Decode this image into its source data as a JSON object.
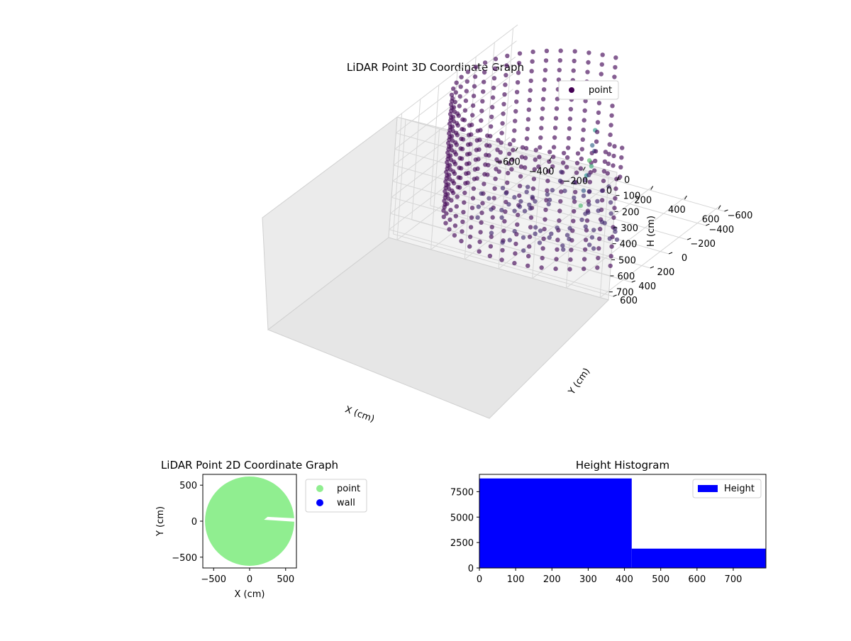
{
  "chart_data": [
    {
      "type": "scatter",
      "projection": "3d",
      "title": "LiDAR Point 3D Coordinate Graph",
      "xlabel": "X (cm)",
      "ylabel": "Y (cm)",
      "zlabel": "H (cm)",
      "xticks": [
        "−600",
        "−400",
        "−200",
        "0",
        "200",
        "400",
        "600"
      ],
      "yticks": [
        "−600",
        "−400",
        "−200",
        "0",
        "200",
        "400",
        "600"
      ],
      "zticks": [
        "0",
        "100",
        "200",
        "300",
        "400",
        "500",
        "600",
        "700"
      ],
      "xlim": [
        -650,
        650
      ],
      "ylim": [
        -650,
        650
      ],
      "zlim": [
        0,
        750
      ],
      "z_inverted": true,
      "grid": true,
      "legend": {
        "position": "top-right",
        "entries": [
          {
            "label": "point",
            "color": "#440154"
          }
        ]
      },
      "colormap": "viridis",
      "shape": "ring wall of points (radius ≈ 600 cm) sampled at heights 0–750 cm with scattered outliers toward +X/−Y"
    },
    {
      "type": "scatter",
      "title": "LiDAR Point 2D Coordinate Graph",
      "xlabel": "X (cm)",
      "ylabel": "Y (cm)",
      "xticks": [
        "−500",
        "0",
        "500"
      ],
      "yticks": [
        "−500",
        "0",
        "500"
      ],
      "xlim": [
        -650,
        650
      ],
      "ylim": [
        -650,
        650
      ],
      "grid": false,
      "legend": {
        "position": "outside-right",
        "entries": [
          {
            "label": "point",
            "color": "#90ee90"
          },
          {
            "label": "wall",
            "color": "#0000ff"
          }
        ]
      },
      "series": [
        {
          "name": "point",
          "color": "#90ee90",
          "extent": "filled disc of radius ≈ 620 cm, clipped at X = 650"
        }
      ]
    },
    {
      "type": "bar",
      "title": "Height Histogram",
      "xticks": [
        "0",
        "100",
        "200",
        "300",
        "400",
        "500",
        "600",
        "700"
      ],
      "yticks": [
        "0",
        "2500",
        "5000",
        "7500"
      ],
      "xlim": [
        0,
        790
      ],
      "ylim": [
        0,
        9200
      ],
      "grid": false,
      "legend": {
        "position": "top-right",
        "entries": [
          {
            "label": "Height",
            "color": "#0000ff"
          }
        ]
      },
      "series": [
        {
          "name": "Height",
          "color": "#0000ff",
          "bins": [
            {
              "x0": 0,
              "x1": 420,
              "count": 8800
            },
            {
              "x0": 420,
              "x1": 790,
              "count": 1900
            }
          ]
        }
      ]
    }
  ]
}
